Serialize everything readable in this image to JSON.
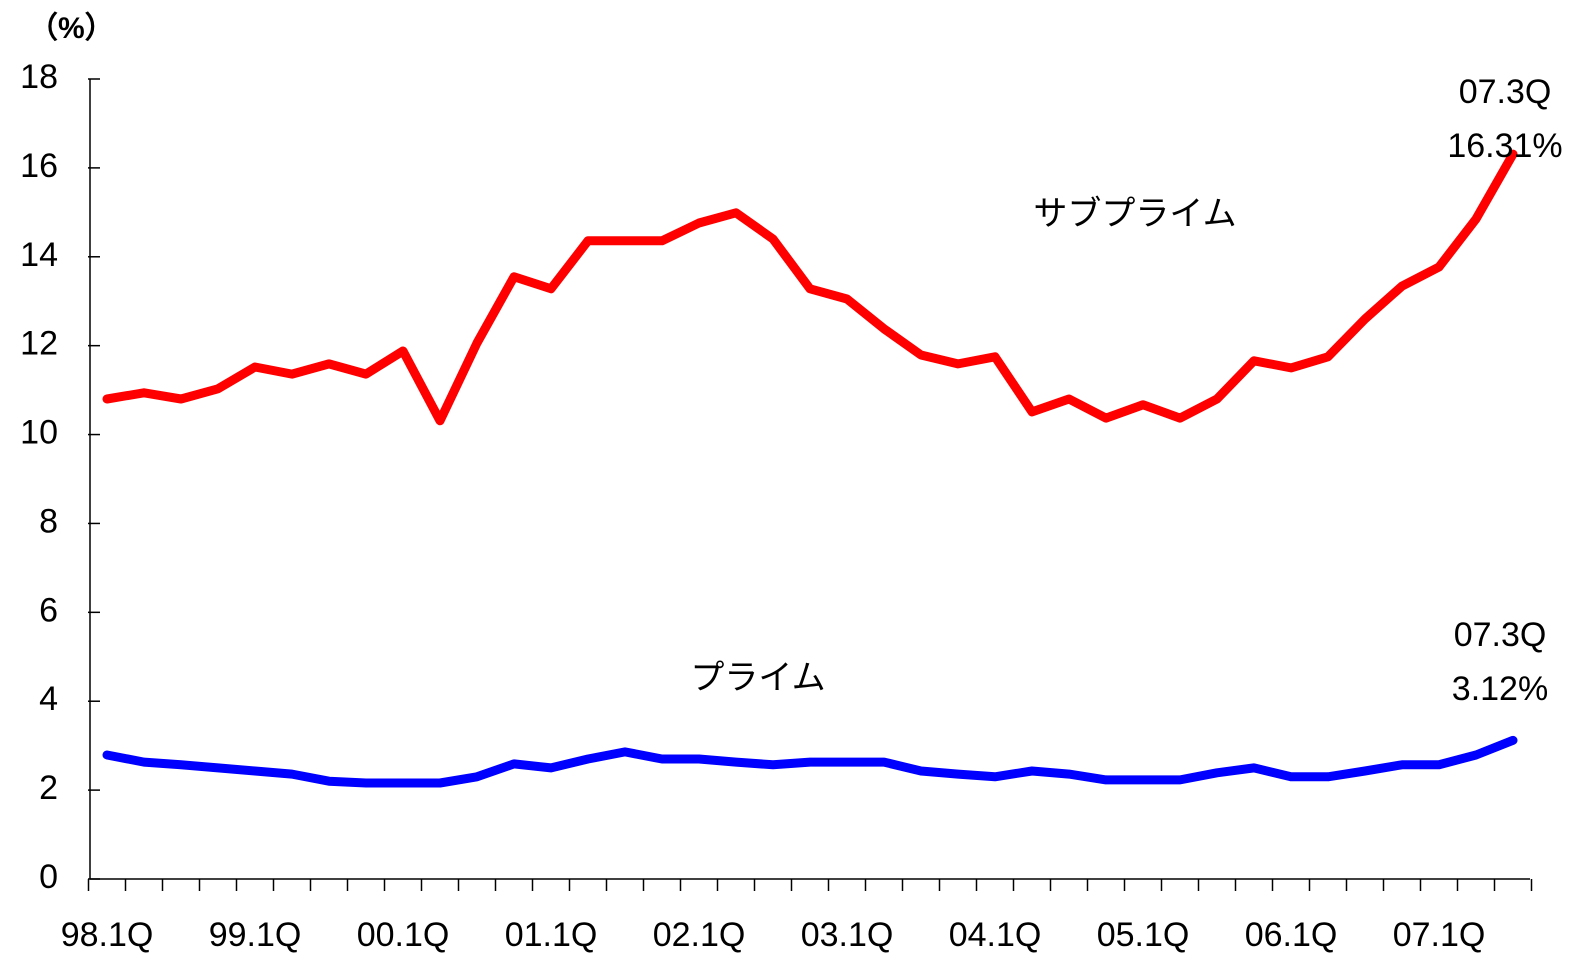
{
  "chart_data": {
    "type": "line",
    "unit_label": "（%）",
    "categories": [
      "98.1Q",
      null,
      null,
      null,
      "99.1Q",
      null,
      null,
      null,
      "00.1Q",
      null,
      null,
      null,
      "01.1Q",
      null,
      null,
      null,
      "02.1Q",
      null,
      null,
      null,
      "03.1Q",
      null,
      null,
      null,
      "04.1Q",
      null,
      null,
      null,
      "05.1Q",
      null,
      null,
      null,
      "06.1Q",
      null,
      null,
      null,
      "07.1Q",
      null,
      null
    ],
    "series": [
      {
        "name": "サブプライム",
        "color": "#ff0000",
        "values": [
          10.8,
          10.94,
          10.8,
          11.03,
          11.52,
          11.36,
          11.59,
          11.36,
          11.88,
          10.31,
          12.06,
          13.55,
          13.28,
          14.36,
          14.36,
          14.36,
          14.76,
          14.99,
          14.4,
          13.28,
          13.05,
          12.38,
          11.79,
          11.59,
          11.75,
          10.51,
          10.8,
          10.37,
          10.67,
          10.37,
          10.8,
          11.66,
          11.5,
          11.75,
          12.6,
          13.34,
          13.77,
          14.85,
          16.31
        ]
      },
      {
        "name": "プライム",
        "color": "#0000ff",
        "values": [
          2.79,
          2.63,
          2.57,
          2.5,
          2.43,
          2.36,
          2.2,
          2.16,
          2.16,
          2.16,
          2.3,
          2.59,
          2.5,
          2.7,
          2.86,
          2.7,
          2.7,
          2.63,
          2.57,
          2.63,
          2.63,
          2.63,
          2.43,
          2.36,
          2.3,
          2.43,
          2.36,
          2.23,
          2.23,
          2.23,
          2.39,
          2.5,
          2.3,
          2.3,
          2.43,
          2.57,
          2.57,
          2.79,
          3.12
        ]
      }
    ],
    "annotations": [
      {
        "lines": [
          "07.3Q",
          "16.31%"
        ]
      },
      {
        "lines": [
          "07.3Q",
          "3.12%"
        ]
      }
    ],
    "ylim": [
      0,
      18
    ],
    "yticks": [
      0,
      2,
      4,
      6,
      8,
      10,
      12,
      14,
      16,
      18
    ]
  }
}
